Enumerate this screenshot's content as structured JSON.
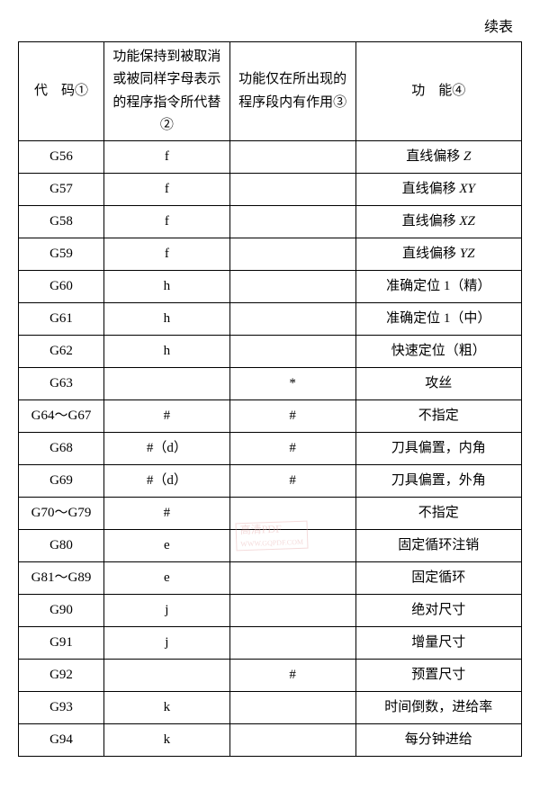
{
  "continue_label": "续表",
  "headers": {
    "c1": "代　码①",
    "c2": "功能保持到被取消或被同样字母表示的程序指令所代替②",
    "c3": "功能仅在所出现的程序段内有作用③",
    "c4": "功　能④"
  },
  "rows": [
    {
      "code": "G56",
      "c2": "f",
      "c3": "",
      "func_prefix": "直线偏移 ",
      "func_italic": "Z"
    },
    {
      "code": "G57",
      "c2": "f",
      "c3": "",
      "func_prefix": "直线偏移 ",
      "func_italic": "XY"
    },
    {
      "code": "G58",
      "c2": "f",
      "c3": "",
      "func_prefix": "直线偏移 ",
      "func_italic": "XZ"
    },
    {
      "code": "G59",
      "c2": "f",
      "c3": "",
      "func_prefix": "直线偏移 ",
      "func_italic": "YZ"
    },
    {
      "code": "G60",
      "c2": "h",
      "c3": "",
      "func": "准确定位 1（精）"
    },
    {
      "code": "G61",
      "c2": "h",
      "c3": "",
      "func": "准确定位 1（中）"
    },
    {
      "code": "G62",
      "c2": "h",
      "c3": "",
      "func": "快速定位（粗）"
    },
    {
      "code": "G63",
      "c2": "",
      "c3": "*",
      "func": "攻丝"
    },
    {
      "code": "G64～G67",
      "c2": "#",
      "c3": "#",
      "func": "不指定"
    },
    {
      "code": "G68",
      "c2": "#（d）",
      "c3": "#",
      "func": "刀具偏置，内角"
    },
    {
      "code": "G69",
      "c2": "#（d）",
      "c3": "#",
      "func": "刀具偏置，外角"
    },
    {
      "code": "G70～G79",
      "c2": "#",
      "c3": "",
      "func": "不指定"
    },
    {
      "code": "G80",
      "c2": "e",
      "c3": "",
      "func": "固定循环注销"
    },
    {
      "code": "G81～G89",
      "c2": "e",
      "c3": "",
      "func": "固定循环"
    },
    {
      "code": "G90",
      "c2": "j",
      "c3": "",
      "func": "绝对尺寸"
    },
    {
      "code": "G91",
      "c2": "j",
      "c3": "",
      "func": "增量尺寸"
    },
    {
      "code": "G92",
      "c2": "",
      "c3": "#",
      "func": "预置尺寸"
    },
    {
      "code": "G93",
      "c2": "k",
      "c3": "",
      "func": "时间倒数，进给率"
    },
    {
      "code": "G94",
      "c2": "k",
      "c3": "",
      "func": "每分钟进给"
    }
  ],
  "watermark": {
    "line1": "高清PDF",
    "line2": "WWW.GQPDF.COM"
  }
}
